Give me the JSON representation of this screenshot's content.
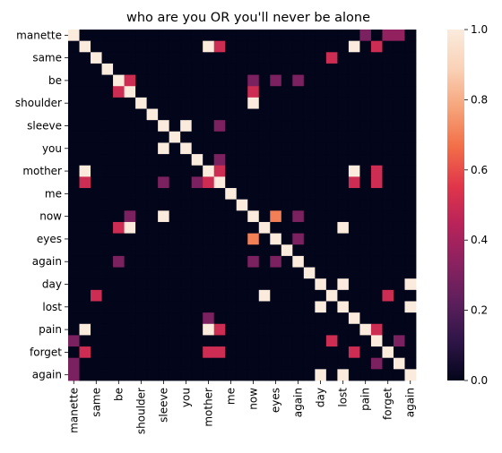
{
  "chart_data": {
    "type": "heatmap",
    "title": "who are you OR you'll never be alone",
    "xlabel": "",
    "ylabel": "",
    "x_tick_labels": [
      "manette",
      "same",
      "be",
      "shoulder",
      "sleeve",
      "you",
      "mother",
      "me",
      "now",
      "eyes",
      "again",
      "day",
      "lost",
      "pain",
      "forget",
      "again"
    ],
    "y_tick_labels": [
      "manette",
      "same",
      "be",
      "shoulder",
      "sleeve",
      "you",
      "mother",
      "me",
      "now",
      "eyes",
      "again",
      "day",
      "lost",
      "pain",
      "forget",
      "again"
    ],
    "n": 31,
    "value_range": [
      0,
      1
    ],
    "colorbar_ticks": [
      "0.0",
      "0.2",
      "0.4",
      "0.6",
      "0.8",
      "1.0"
    ],
    "colormap": [
      "#03051a",
      "#2e1547",
      "#5c1f5c",
      "#8a2260",
      "#b8235a",
      "#e1364a",
      "#f26f48",
      "#f6a47a",
      "#fad2b7",
      "#faebdd"
    ],
    "matrix": [
      [
        1,
        0,
        0,
        0,
        0,
        0,
        0,
        0,
        0,
        0,
        0,
        0,
        0,
        0,
        0,
        0,
        0,
        0,
        0,
        0,
        0,
        0,
        0,
        0,
        0,
        0,
        0.3,
        0,
        0.35,
        0.35,
        0
      ],
      [
        0,
        1,
        0,
        0,
        0,
        0,
        0,
        0,
        0,
        0,
        0,
        0,
        1,
        0.5,
        0,
        0,
        0,
        0,
        0,
        0,
        0,
        0,
        0,
        0,
        0,
        1,
        0,
        0.5,
        0,
        0,
        0
      ],
      [
        0,
        0,
        1,
        0,
        0,
        0,
        0,
        0,
        0,
        0,
        0,
        0,
        0,
        0,
        0,
        0,
        0,
        0,
        0,
        0,
        0,
        0,
        0,
        0.5,
        0,
        0,
        0,
        0,
        0,
        0,
        0
      ],
      [
        0,
        0,
        0,
        1,
        0,
        0,
        0,
        0,
        0,
        0,
        0,
        0,
        0,
        0,
        0,
        0,
        0,
        0,
        0,
        0,
        0,
        0,
        0,
        0,
        0,
        0,
        0,
        0,
        0,
        0,
        0
      ],
      [
        0,
        0,
        0,
        0,
        1,
        0.5,
        0,
        0,
        0,
        0,
        0,
        0,
        0,
        0,
        0,
        0,
        0.3,
        0,
        0.3,
        0,
        0.3,
        0,
        0,
        0,
        0,
        0,
        0,
        0,
        0,
        0,
        0
      ],
      [
        0,
        0,
        0,
        0,
        0.5,
        1,
        0,
        0,
        0,
        0,
        0,
        0,
        0,
        0,
        0,
        0,
        0.5,
        0,
        0,
        0,
        0,
        0,
        0,
        0,
        0,
        0,
        0,
        0,
        0,
        0,
        0
      ],
      [
        0,
        0,
        0,
        0,
        0,
        0,
        1,
        0,
        0,
        0,
        0,
        0,
        0,
        0,
        0,
        0,
        1,
        0,
        0,
        0,
        0,
        0,
        0,
        0,
        0,
        0,
        0,
        0,
        0,
        0,
        0
      ],
      [
        0,
        0,
        0,
        0,
        0,
        0,
        0,
        1,
        0,
        0,
        0,
        0,
        0,
        0,
        0,
        0,
        0,
        0,
        0,
        0,
        0,
        0,
        0,
        0,
        0,
        0,
        0,
        0,
        0,
        0,
        0
      ],
      [
        0,
        0,
        0,
        0,
        0,
        0,
        0,
        0,
        1,
        0,
        1,
        0,
        0,
        0.3,
        0,
        0,
        0,
        0,
        0,
        0,
        0,
        0,
        0,
        0,
        0,
        0,
        0,
        0,
        0,
        0,
        0
      ],
      [
        0,
        0,
        0,
        0,
        0,
        0,
        0,
        0,
        0,
        1,
        0,
        0,
        0,
        0,
        0,
        0,
        0,
        0,
        0,
        0,
        0,
        0,
        0,
        0,
        0,
        0,
        0,
        0,
        0,
        0,
        0
      ],
      [
        0,
        0,
        0,
        0,
        0,
        0,
        0,
        0,
        1,
        0,
        1,
        0,
        0,
        0,
        0,
        0,
        0,
        0,
        0,
        0,
        0,
        0,
        0,
        0,
        0,
        0,
        0,
        0,
        0,
        0,
        0
      ],
      [
        0,
        0,
        0,
        0,
        0,
        0,
        0,
        0,
        0,
        0,
        0,
        1,
        0,
        0.3,
        0,
        0,
        0,
        0,
        0,
        0,
        0,
        0,
        0,
        0,
        0,
        0,
        0,
        0,
        0,
        0,
        0
      ],
      [
        0,
        1,
        0,
        0,
        0,
        0,
        0,
        0,
        0,
        0,
        0,
        0,
        1,
        0.5,
        0,
        0,
        0,
        0,
        0,
        0,
        0,
        0,
        0,
        0,
        0,
        1,
        0,
        0.5,
        0,
        0,
        0
      ],
      [
        0,
        0.5,
        0,
        0,
        0,
        0,
        0,
        0,
        0.3,
        0,
        0,
        0.3,
        0.5,
        1,
        0,
        0,
        0,
        0,
        0,
        0,
        0,
        0,
        0,
        0,
        0,
        0.5,
        0,
        0.5,
        0,
        0,
        0
      ],
      [
        0,
        0,
        0,
        0,
        0,
        0,
        0,
        0,
        0,
        0,
        0,
        0,
        0,
        0,
        1,
        0,
        0,
        0,
        0,
        0,
        0,
        0,
        0,
        0,
        0,
        0,
        0,
        0,
        0,
        0,
        0
      ],
      [
        0,
        0,
        0,
        0,
        0,
        0,
        0,
        0,
        0,
        0,
        0,
        0,
        0,
        0,
        0,
        1,
        0,
        0,
        0,
        0,
        0,
        0,
        0,
        0,
        0,
        0,
        0,
        0,
        0,
        0,
        0
      ],
      [
        0,
        0,
        0,
        0,
        0,
        0.3,
        0,
        0,
        1,
        0,
        0,
        0,
        0,
        0,
        0,
        0,
        1,
        0,
        0.7,
        0,
        0.3,
        0,
        0,
        0,
        0,
        0,
        0,
        0,
        0,
        0,
        0
      ],
      [
        0,
        0,
        0,
        0,
        0.5,
        1,
        0,
        0,
        0,
        0,
        0,
        0,
        0,
        0,
        0,
        0,
        0,
        1,
        0,
        0,
        0,
        0,
        0,
        0,
        1,
        0,
        0,
        0,
        0,
        0,
        0
      ],
      [
        0,
        0,
        0,
        0,
        0,
        0,
        0,
        0,
        0,
        0,
        0,
        0,
        0,
        0,
        0,
        0,
        0.7,
        0,
        1,
        0,
        0.3,
        0,
        0,
        0,
        0,
        0,
        0,
        0,
        0,
        0,
        0
      ],
      [
        0,
        0,
        0,
        0,
        0,
        0,
        0,
        0,
        0,
        0,
        0,
        0,
        0,
        0,
        0,
        0,
        0,
        0,
        0,
        1,
        0,
        0,
        0,
        0,
        0,
        0,
        0,
        0,
        0,
        0,
        0
      ],
      [
        0,
        0,
        0,
        0,
        0.3,
        0,
        0,
        0,
        0,
        0,
        0,
        0,
        0,
        0,
        0,
        0,
        0.3,
        0,
        0.3,
        0,
        1,
        0,
        0,
        0,
        0,
        0,
        0,
        0,
        0,
        0,
        0
      ],
      [
        0,
        0,
        0,
        0,
        0,
        0,
        0,
        0,
        0,
        0,
        0,
        0,
        0,
        0,
        0,
        0,
        0,
        0,
        0,
        0,
        0,
        1,
        0,
        0,
        0,
        0,
        0,
        0,
        0,
        0,
        0
      ],
      [
        0,
        0,
        0,
        0,
        0,
        0,
        0,
        0,
        0,
        0,
        0,
        0,
        0,
        0,
        0,
        0,
        0,
        0,
        0,
        0,
        0,
        0,
        1,
        0,
        1,
        0,
        0,
        0,
        0,
        0,
        1
      ],
      [
        0,
        0,
        0.5,
        0,
        0,
        0,
        0,
        0,
        0,
        0,
        0,
        0,
        0,
        0,
        0,
        0,
        0,
        1,
        0,
        0,
        0,
        0,
        0,
        1,
        0,
        0,
        0,
        0,
        0.5,
        0,
        0
      ],
      [
        0,
        0,
        0,
        0,
        0,
        0,
        0,
        0,
        0,
        0,
        0,
        0,
        0,
        0,
        0,
        0,
        0,
        0,
        0,
        0,
        0,
        0,
        1,
        0,
        1,
        0,
        0,
        0,
        0,
        0,
        1
      ],
      [
        0,
        0,
        0,
        0,
        0,
        0,
        0,
        0,
        0,
        0,
        0,
        0,
        0.3,
        0,
        0,
        0,
        0,
        0,
        0,
        0,
        0,
        0,
        0,
        0,
        0,
        1,
        0,
        0,
        0,
        0,
        0
      ],
      [
        0,
        1,
        0,
        0,
        0,
        0,
        0,
        0,
        0,
        0,
        0,
        0,
        1,
        0.5,
        0,
        0,
        0,
        0,
        0,
        0,
        0,
        0,
        0,
        0,
        0,
        0,
        1,
        0.5,
        0,
        0,
        0
      ],
      [
        0.3,
        0,
        0,
        0,
        0,
        0,
        0,
        0,
        0,
        0,
        0,
        0,
        0,
        0,
        0,
        0,
        0,
        0,
        0,
        0,
        0,
        0,
        0,
        0.5,
        0,
        0,
        0,
        1,
        0,
        0.3,
        0
      ],
      [
        0,
        0.5,
        0,
        0,
        0,
        0,
        0,
        0,
        0,
        0,
        0,
        0,
        0.5,
        0.5,
        0,
        0,
        0,
        0,
        0,
        0,
        0,
        0,
        0,
        0,
        0,
        0.5,
        0,
        0,
        1,
        0,
        0
      ],
      [
        0.3,
        0,
        0,
        0,
        0,
        0,
        0,
        0,
        0,
        0,
        0,
        0,
        0,
        0,
        0,
        0,
        0,
        0,
        0,
        0,
        0,
        0,
        0,
        0,
        0,
        0,
        0,
        0.3,
        0,
        1,
        0
      ],
      [
        0.3,
        0,
        0,
        0,
        0,
        0,
        0,
        0,
        0,
        0,
        0,
        0,
        0,
        0,
        0,
        0,
        0,
        0,
        0,
        0,
        0,
        0,
        1,
        0,
        1,
        0,
        0,
        0,
        0,
        0,
        1
      ]
    ]
  }
}
